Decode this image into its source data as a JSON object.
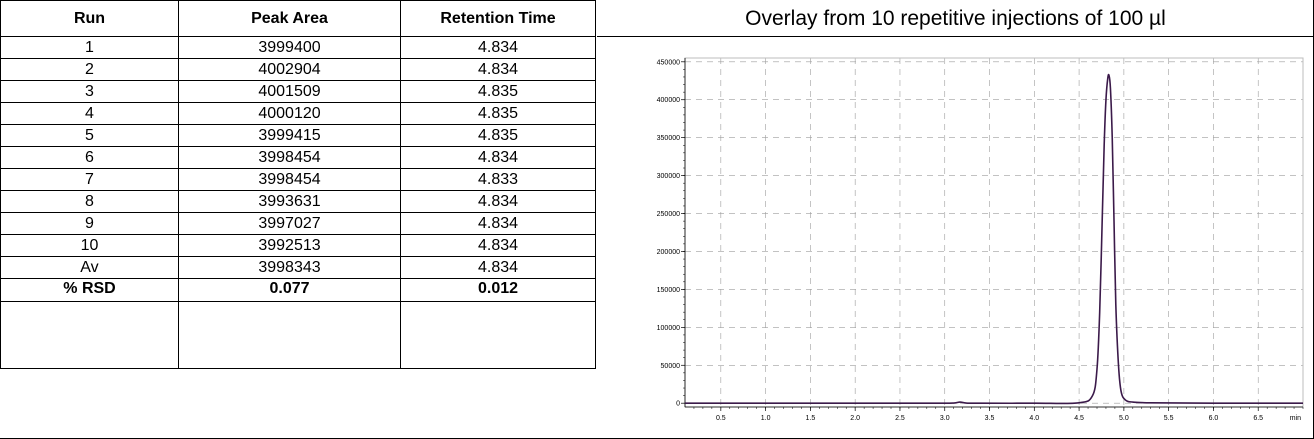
{
  "table": {
    "headers": [
      "Run",
      "Peak Area",
      "Retention Time"
    ],
    "rows": [
      [
        "1",
        "3999400",
        "4.834"
      ],
      [
        "2",
        "4002904",
        "4.834"
      ],
      [
        "3",
        "4001509",
        "4.835"
      ],
      [
        "4",
        "4000120",
        "4.835"
      ],
      [
        "5",
        "3999415",
        "4.835"
      ],
      [
        "6",
        "3998454",
        "4.834"
      ],
      [
        "7",
        "3998454",
        "4.833"
      ],
      [
        "8",
        "3993631",
        "4.834"
      ],
      [
        "9",
        "3997027",
        "4.834"
      ],
      [
        "10",
        "3992513",
        "4.834"
      ],
      [
        "Av",
        "3998343",
        "4.834"
      ]
    ],
    "rsd": [
      "% RSD",
      "0.077",
      "0.012"
    ]
  },
  "chart_data": {
    "type": "line",
    "title": "Overlay from 10 repetitive injections of 100 µl",
    "xlabel": "",
    "ylabel": "",
    "x_unit": "min",
    "xlim": [
      0.1,
      7.0
    ],
    "ylim": [
      -5000,
      455000
    ],
    "x_ticks": [
      0.5,
      1.0,
      1.5,
      2.0,
      2.5,
      3.0,
      3.5,
      4.0,
      4.5,
      5.0,
      5.5,
      6.0,
      6.5
    ],
    "x_tick_labels": [
      "0.5",
      "1.0",
      "1.5",
      "2.0",
      "2.5",
      "3.0",
      "3.5",
      "4.0",
      "4.5",
      "5.0",
      "5.5",
      "6.0",
      "6.5",
      "min"
    ],
    "y_ticks": [
      0,
      50000,
      100000,
      150000,
      200000,
      250000,
      300000,
      350000,
      400000,
      450000
    ],
    "y_tick_labels": [
      "0",
      "50000",
      "100000",
      "150000",
      "200000",
      "250000",
      "300000",
      "350000",
      "400000",
      "450000"
    ],
    "grid": true,
    "line_color": "#3b1a4a",
    "series": [
      {
        "x": [
          0.1,
          1.0,
          2.0,
          2.9,
          3.1,
          3.17,
          3.24,
          3.4,
          4.0,
          4.5,
          4.65,
          4.7,
          4.73,
          4.76,
          4.78,
          4.8,
          4.82,
          4.834,
          4.85,
          4.87,
          4.89,
          4.91,
          4.94,
          4.97,
          5.02,
          5.1,
          5.3,
          6.0,
          7.0
        ],
        "y": [
          0,
          0,
          0,
          0,
          200,
          1500,
          200,
          0,
          0,
          500,
          10000,
          45000,
          120000,
          250000,
          340000,
          400000,
          428000,
          432000,
          415000,
          350000,
          240000,
          130000,
          50000,
          15000,
          4000,
          1500,
          500,
          0,
          0
        ]
      }
    ]
  }
}
